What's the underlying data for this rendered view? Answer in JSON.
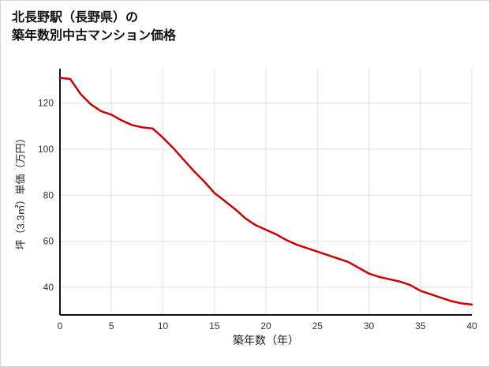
{
  "header": {
    "title_line1": "北長野駅（長野県）の",
    "title_line2": "築年数別中古マンション価格"
  },
  "chart_data": {
    "type": "line",
    "title": "北長野駅（長野県）の築年数別中古マンション価格",
    "xlabel": "築年数（年）",
    "ylabel": "坪（3.3㎡）単価（万円）",
    "x": [
      0,
      1,
      2,
      3,
      4,
      5,
      6,
      7,
      8,
      9,
      10,
      11,
      12,
      13,
      14,
      15,
      16,
      17,
      18,
      19,
      20,
      21,
      22,
      23,
      24,
      25,
      26,
      27,
      28,
      29,
      30,
      31,
      32,
      33,
      34,
      35,
      36,
      37,
      38,
      39,
      40
    ],
    "values": [
      131,
      130.5,
      124,
      119.5,
      116.5,
      115,
      112.5,
      110.5,
      109.5,
      109,
      105,
      100.5,
      95.5,
      90.5,
      86,
      81,
      77.5,
      74,
      70,
      67,
      65,
      63,
      60.5,
      58.5,
      57,
      55.5,
      54,
      52.5,
      51,
      48.5,
      46,
      44.5,
      43.5,
      42.5,
      41,
      38.5,
      37,
      35.5,
      34,
      33,
      32.5
    ],
    "xlim": [
      0,
      40
    ],
    "ylim": [
      28,
      135
    ],
    "xticks": [
      0,
      5,
      10,
      15,
      20,
      25,
      30,
      35,
      40
    ],
    "yticks": [
      40,
      60,
      80,
      100,
      120
    ],
    "grid": true,
    "legend": "none",
    "colors": {
      "line": "#cc0000",
      "grid": "#e0e0e0",
      "axis": "#111111",
      "tick_text": "#333333"
    }
  }
}
